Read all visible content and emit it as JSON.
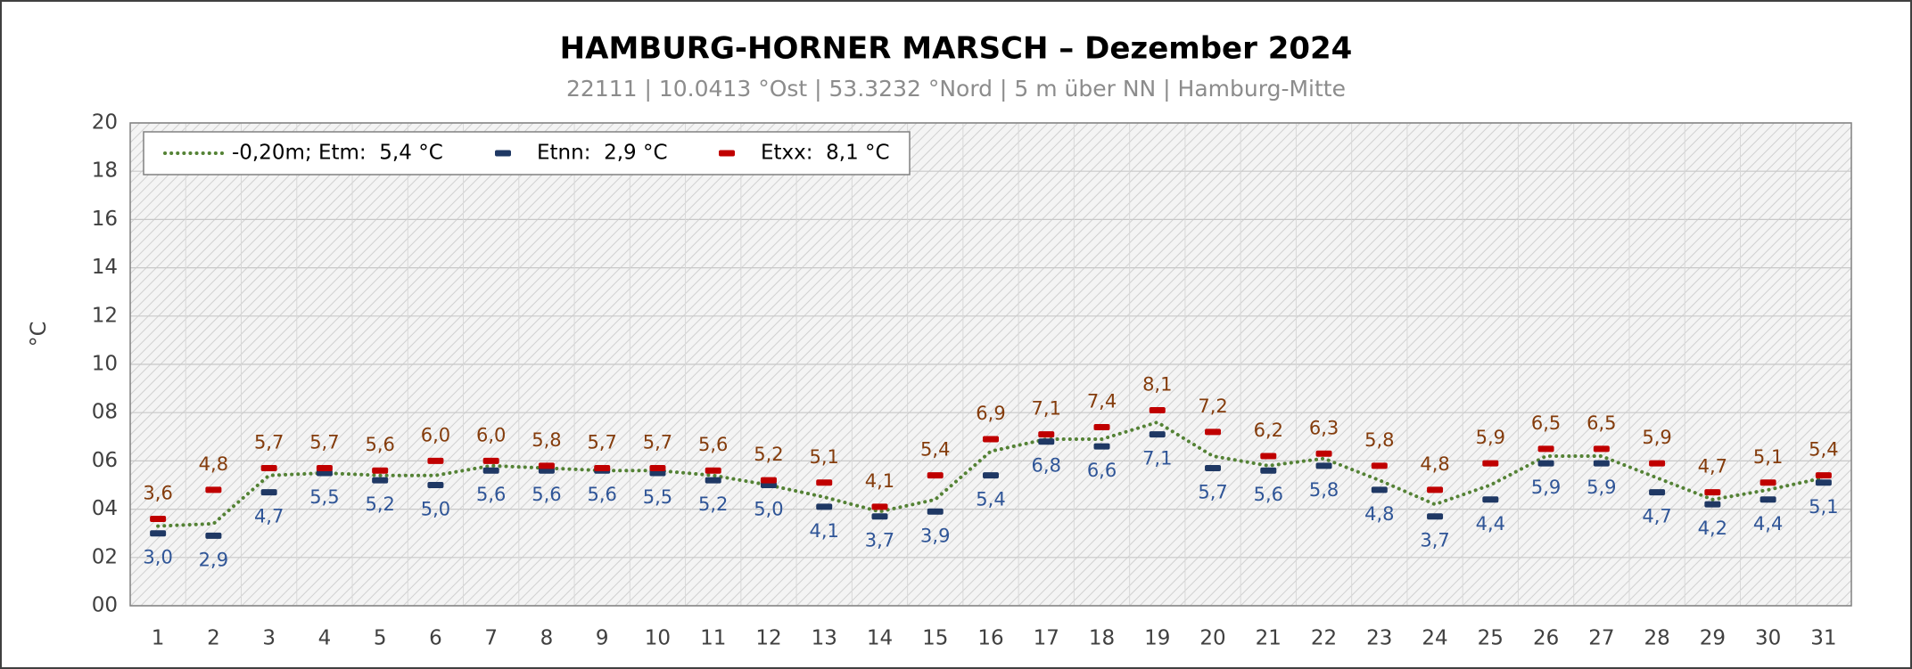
{
  "chart_data": {
    "type": "line",
    "title": "HAMBURG-HORNER MARSCH   –   Dezember 2024",
    "subtitle": "22111  |  10.0413 °Ost  |  53.3232 °Nord  | 5 m über NN  |  Hamburg-Mitte",
    "ylabel": "°C",
    "categories": [
      "1",
      "2",
      "3",
      "4",
      "5",
      "6",
      "7",
      "8",
      "9",
      "10",
      "11",
      "12",
      "13",
      "14",
      "15",
      "16",
      "17",
      "18",
      "19",
      "20",
      "21",
      "22",
      "23",
      "24",
      "25",
      "26",
      "27",
      "28",
      "29",
      "30",
      "31"
    ],
    "series": [
      {
        "name": "-0,20m; Etm:  5,4 °C",
        "color": "#548235",
        "style": "dotted",
        "values": [
          3.3,
          3.4,
          5.4,
          5.5,
          5.4,
          5.4,
          5.8,
          5.7,
          5.6,
          5.6,
          5.4,
          5.0,
          4.5,
          3.9,
          4.4,
          6.4,
          6.9,
          6.9,
          7.6,
          6.2,
          5.8,
          6.1,
          5.2,
          4.2,
          5.0,
          6.2,
          6.2,
          5.3,
          4.4,
          4.8,
          5.3
        ]
      },
      {
        "name": "Etnn:  2,9 °C",
        "color": "#1f3864",
        "label_color": "#2f5597",
        "marker": "dash",
        "label_position": "below",
        "values": [
          3.0,
          2.9,
          4.7,
          5.5,
          5.2,
          5.0,
          5.6,
          5.6,
          5.6,
          5.5,
          5.2,
          5.0,
          4.1,
          3.7,
          3.9,
          5.4,
          6.8,
          6.6,
          7.1,
          5.7,
          5.6,
          5.8,
          4.8,
          3.7,
          4.4,
          5.9,
          5.9,
          4.7,
          4.2,
          4.4,
          5.1
        ],
        "value_labels": [
          "3,0",
          "2,9",
          "4,7",
          "5,5",
          "5,2",
          "5,0",
          "5,6",
          "5,6",
          "5,6",
          "5,5",
          "5,2",
          "5,0",
          "4,1",
          "3,7",
          "3,9",
          "5,4",
          "6,8",
          "6,6",
          "7,1",
          "5,7",
          "5,6",
          "5,8",
          "4,8",
          "3,7",
          "4,4",
          "5,9",
          "5,9",
          "4,7",
          "4,2",
          "4,4",
          "5,1"
        ]
      },
      {
        "name": "Etxx:  8,1 °C",
        "color": "#c00000",
        "label_color": "#843c0c",
        "marker": "dash",
        "label_position": "above",
        "values": [
          3.6,
          4.8,
          5.7,
          5.7,
          5.6,
          6.0,
          6.0,
          5.8,
          5.7,
          5.7,
          5.6,
          5.2,
          5.1,
          4.1,
          5.4,
          6.9,
          7.1,
          7.4,
          8.1,
          7.2,
          6.2,
          6.3,
          5.8,
          4.8,
          5.9,
          6.5,
          6.5,
          5.9,
          4.7,
          5.1,
          5.4
        ],
        "value_labels": [
          "3,6",
          "4,8",
          "5,7",
          "5,7",
          "5,6",
          "6,0",
          "6,0",
          "5,8",
          "5,7",
          "5,7",
          "5,6",
          "5,2",
          "5,1",
          "4,1",
          "5,4",
          "6,9",
          "7,1",
          "7,4",
          "8,1",
          "7,2",
          "6,2",
          "6,3",
          "5,8",
          "4,8",
          "5,9",
          "6,5",
          "6,5",
          "5,9",
          "4,7",
          "5,1",
          "5,4"
        ]
      }
    ],
    "ylim": [
      0,
      20
    ],
    "yticks": [
      {
        "value": 0,
        "label": "00"
      },
      {
        "value": 2,
        "label": "02"
      },
      {
        "value": 4,
        "label": "04"
      },
      {
        "value": 6,
        "label": "06"
      },
      {
        "value": 8,
        "label": "08"
      },
      10,
      12,
      14,
      16,
      18,
      20
    ],
    "grid": true,
    "legend": "upper left"
  }
}
